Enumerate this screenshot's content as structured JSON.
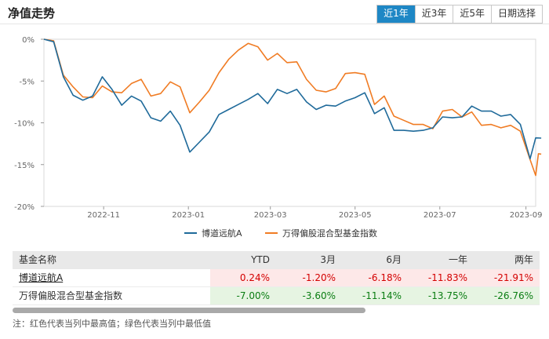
{
  "header": {
    "title": "净值走势",
    "tabs": [
      "近1年",
      "近3年",
      "近5年",
      "日期选择"
    ],
    "active_tab": 0
  },
  "colors": {
    "series_a": "#1f6a9a",
    "series_b": "#f07c24",
    "accent": "#1e87c5",
    "max_bg": "#fde8e8",
    "min_bg": "#e6f4e2"
  },
  "chart_data": {
    "type": "line",
    "y_ticks": [
      "0%",
      "-5%",
      "-10%",
      "-15%",
      "-20%"
    ],
    "ylim": [
      -20,
      0
    ],
    "x_ticks": [
      "2022-11",
      "2023-01",
      "2023-03",
      "2023-05",
      "2023-07",
      "2023-09"
    ],
    "x_tick_dates": [
      "2022-11-01",
      "2023-01-01",
      "2023-03-01",
      "2023-05-01",
      "2023-07-01",
      "2023-09-01"
    ],
    "x_range": [
      "2022-09-19",
      "2023-09-08"
    ],
    "legend_position": "bottom",
    "series": [
      {
        "name": "博道远航A",
        "color": "#1f6a9a",
        "points": [
          [
            "2022-09-19",
            0.0
          ],
          [
            "2022-09-26",
            -0.3
          ],
          [
            "2022-10-03",
            -4.5
          ],
          [
            "2022-10-10",
            -6.7
          ],
          [
            "2022-10-17",
            -7.3
          ],
          [
            "2022-10-24",
            -6.8
          ],
          [
            "2022-10-31",
            -4.5
          ],
          [
            "2022-11-07",
            -6.0
          ],
          [
            "2022-11-14",
            -7.9
          ],
          [
            "2022-11-21",
            -6.8
          ],
          [
            "2022-11-28",
            -7.4
          ],
          [
            "2022-12-05",
            -9.4
          ],
          [
            "2022-12-12",
            -9.8
          ],
          [
            "2022-12-19",
            -8.6
          ],
          [
            "2022-12-26",
            -10.3
          ],
          [
            "2023-01-02",
            -13.5
          ],
          [
            "2023-01-09",
            -12.3
          ],
          [
            "2023-01-16",
            -11.1
          ],
          [
            "2023-01-23",
            -9.0
          ],
          [
            "2023-01-30",
            -8.4
          ],
          [
            "2023-02-06",
            -7.8
          ],
          [
            "2023-02-13",
            -7.2
          ],
          [
            "2023-02-20",
            -6.5
          ],
          [
            "2023-02-27",
            -7.7
          ],
          [
            "2023-03-06",
            -6.0
          ],
          [
            "2023-03-13",
            -6.5
          ],
          [
            "2023-03-20",
            -6.0
          ],
          [
            "2023-03-27",
            -7.5
          ],
          [
            "2023-04-03",
            -8.4
          ],
          [
            "2023-04-10",
            -7.9
          ],
          [
            "2023-04-17",
            -8.0
          ],
          [
            "2023-04-24",
            -7.4
          ],
          [
            "2023-05-01",
            -7.0
          ],
          [
            "2023-05-08",
            -6.4
          ],
          [
            "2023-05-15",
            -8.9
          ],
          [
            "2023-05-22",
            -8.2
          ],
          [
            "2023-05-29",
            -10.9
          ],
          [
            "2023-06-05",
            -10.9
          ],
          [
            "2023-06-12",
            -11.0
          ],
          [
            "2023-06-19",
            -10.9
          ],
          [
            "2023-06-26",
            -10.6
          ],
          [
            "2023-07-03",
            -9.3
          ],
          [
            "2023-07-10",
            -9.4
          ],
          [
            "2023-07-17",
            -9.3
          ],
          [
            "2023-07-24",
            -8.0
          ],
          [
            "2023-07-31",
            -8.6
          ],
          [
            "2023-08-07",
            -8.6
          ],
          [
            "2023-08-14",
            -9.2
          ],
          [
            "2023-08-21",
            -9.0
          ],
          [
            "2023-08-28",
            -10.2
          ],
          [
            "2023-09-04",
            -14.3
          ],
          [
            "2023-09-08",
            -11.8
          ],
          [
            "2023-09-12",
            -11.83
          ]
        ]
      },
      {
        "name": "万得偏股混合型基金指数",
        "color": "#f07c24",
        "points": [
          [
            "2022-09-19",
            0.0
          ],
          [
            "2022-09-26",
            -0.2
          ],
          [
            "2022-10-03",
            -4.3
          ],
          [
            "2022-10-10",
            -5.7
          ],
          [
            "2022-10-17",
            -6.9
          ],
          [
            "2022-10-24",
            -7.0
          ],
          [
            "2022-10-31",
            -5.6
          ],
          [
            "2022-11-07",
            -6.3
          ],
          [
            "2022-11-14",
            -6.4
          ],
          [
            "2022-11-21",
            -5.3
          ],
          [
            "2022-11-28",
            -4.8
          ],
          [
            "2022-12-05",
            -6.8
          ],
          [
            "2022-12-12",
            -6.5
          ],
          [
            "2022-12-19",
            -5.1
          ],
          [
            "2022-12-26",
            -5.7
          ],
          [
            "2023-01-02",
            -8.8
          ],
          [
            "2023-01-09",
            -7.5
          ],
          [
            "2023-01-16",
            -6.1
          ],
          [
            "2023-01-23",
            -4.0
          ],
          [
            "2023-01-30",
            -2.4
          ],
          [
            "2023-02-06",
            -1.3
          ],
          [
            "2023-02-13",
            -0.5
          ],
          [
            "2023-02-20",
            -0.9
          ],
          [
            "2023-02-27",
            -2.5
          ],
          [
            "2023-03-06",
            -1.7
          ],
          [
            "2023-03-13",
            -2.8
          ],
          [
            "2023-03-20",
            -2.7
          ],
          [
            "2023-03-27",
            -4.8
          ],
          [
            "2023-04-03",
            -6.1
          ],
          [
            "2023-04-10",
            -6.3
          ],
          [
            "2023-04-17",
            -5.9
          ],
          [
            "2023-04-24",
            -4.1
          ],
          [
            "2023-05-01",
            -4.0
          ],
          [
            "2023-05-08",
            -4.2
          ],
          [
            "2023-05-15",
            -7.8
          ],
          [
            "2023-05-22",
            -6.8
          ],
          [
            "2023-05-29",
            -9.2
          ],
          [
            "2023-06-05",
            -9.7
          ],
          [
            "2023-06-12",
            -10.2
          ],
          [
            "2023-06-19",
            -10.2
          ],
          [
            "2023-06-26",
            -10.7
          ],
          [
            "2023-07-03",
            -8.6
          ],
          [
            "2023-07-10",
            -8.4
          ],
          [
            "2023-07-17",
            -9.3
          ],
          [
            "2023-07-24",
            -8.7
          ],
          [
            "2023-07-31",
            -10.3
          ],
          [
            "2023-08-07",
            -10.2
          ],
          [
            "2023-08-14",
            -10.6
          ],
          [
            "2023-08-21",
            -10.3
          ],
          [
            "2023-08-28",
            -11.0
          ],
          [
            "2023-09-04",
            -14.4
          ],
          [
            "2023-09-08",
            -16.3
          ],
          [
            "2023-09-10",
            -13.7
          ],
          [
            "2023-09-12",
            -13.75
          ]
        ]
      }
    ]
  },
  "table": {
    "headers": [
      "基金名称",
      "YTD",
      "3月",
      "6月",
      "一年",
      "两年"
    ],
    "rows": [
      {
        "name": "博道远航A",
        "values": [
          "0.24%",
          "-1.20%",
          "-6.18%",
          "-11.83%",
          "-21.91%"
        ],
        "tone": "max"
      },
      {
        "name": "万得偏股混合型基金指数",
        "values": [
          "-7.00%",
          "-3.60%",
          "-11.14%",
          "-13.75%",
          "-26.76%"
        ],
        "tone": "min"
      }
    ]
  },
  "note": "注：红色代表当列中最高值；绿色代表当列中最低值"
}
